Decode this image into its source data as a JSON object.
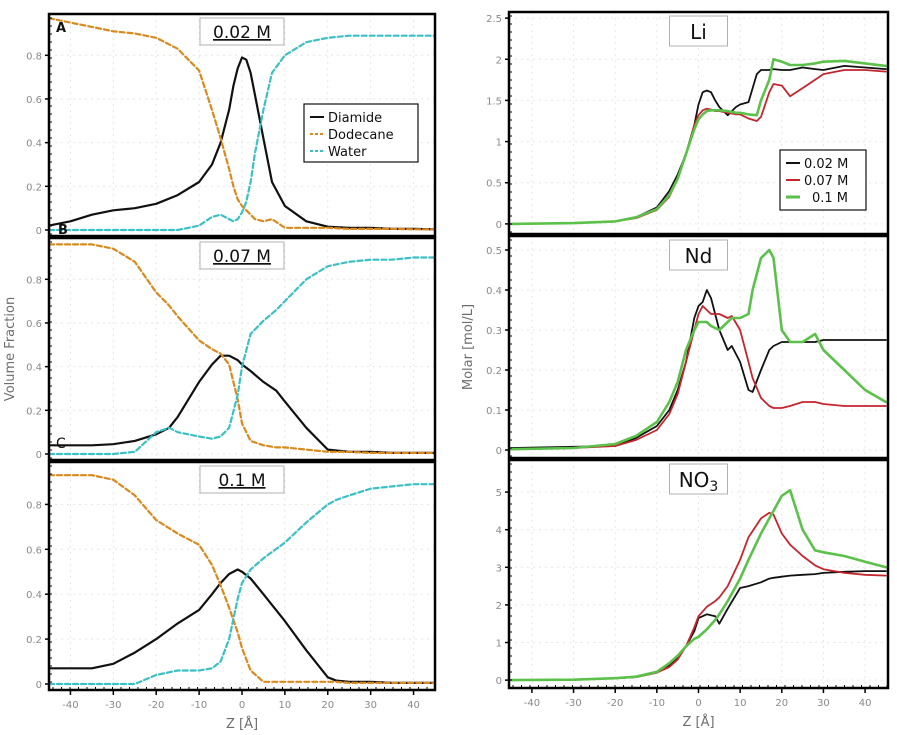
{
  "chart_data": [
    {
      "type": "line",
      "panel_group": "left",
      "ylabel": "Volume Fraction",
      "xlabel": "Z [Å]",
      "xlim": [
        -45,
        45
      ],
      "xticks": [
        -40,
        -30,
        -20,
        -10,
        0,
        10,
        20,
        30,
        40
      ],
      "grid": true,
      "legend": {
        "placement": "center-right",
        "panel": 0
      },
      "series_styles": [
        {
          "name": "Diamide",
          "color": "#111111",
          "dash": "solid"
        },
        {
          "name": "Dodecane",
          "color": "#d98a1e",
          "dash": "dashed"
        },
        {
          "name": "Water",
          "color": "#3cc0c4",
          "dash": "dashed"
        }
      ],
      "panels": [
        {
          "title": "0.02 M",
          "corner_label": "A",
          "bottom_label": "B",
          "ylim": [
            0,
            0.98
          ],
          "yticks": [
            0,
            0.2,
            0.4,
            0.6,
            0.8
          ],
          "x": [
            -45,
            -40,
            -35,
            -30,
            -25,
            -20,
            -15,
            -10,
            -7,
            -5,
            -3,
            -2,
            -1,
            0,
            1,
            2,
            3,
            5,
            7,
            10,
            15,
            20,
            25,
            30,
            35,
            40,
            45
          ],
          "series": [
            {
              "name": "Diamide",
              "values": [
                0.02,
                0.04,
                0.07,
                0.09,
                0.1,
                0.12,
                0.16,
                0.22,
                0.3,
                0.4,
                0.55,
                0.66,
                0.74,
                0.79,
                0.78,
                0.72,
                0.62,
                0.42,
                0.22,
                0.11,
                0.04,
                0.015,
                0.01,
                0.01,
                0.005,
                0.005,
                0.003
              ]
            },
            {
              "name": "Dodecane",
              "values": [
                0.97,
                0.95,
                0.93,
                0.91,
                0.9,
                0.88,
                0.83,
                0.73,
                0.55,
                0.42,
                0.28,
                0.2,
                0.14,
                0.11,
                0.09,
                0.07,
                0.05,
                0.04,
                0.05,
                0.01,
                0.01,
                0.01,
                0.005,
                0.005,
                0.005,
                0.003,
                0.003
              ]
            },
            {
              "name": "Water",
              "values": [
                0,
                0,
                0,
                0,
                0,
                0,
                0,
                0.02,
                0.06,
                0.07,
                0.05,
                0.04,
                0.05,
                0.08,
                0.13,
                0.22,
                0.35,
                0.55,
                0.72,
                0.8,
                0.86,
                0.88,
                0.89,
                0.89,
                0.89,
                0.89,
                0.89
              ]
            }
          ]
        },
        {
          "title": "0.07 M",
          "corner_label": "C",
          "ylim": [
            0,
            0.98
          ],
          "yticks": [
            0,
            0.2,
            0.4,
            0.6,
            0.8
          ],
          "x": [
            -45,
            -40,
            -35,
            -30,
            -25,
            -20,
            -17,
            -15,
            -10,
            -7,
            -5,
            -3,
            -1,
            0,
            2,
            5,
            8,
            10,
            15,
            20,
            25,
            30,
            35,
            40,
            45
          ],
          "series": [
            {
              "name": "Diamide",
              "values": [
                0.04,
                0.04,
                0.04,
                0.045,
                0.06,
                0.09,
                0.12,
                0.17,
                0.33,
                0.41,
                0.45,
                0.45,
                0.43,
                0.41,
                0.38,
                0.33,
                0.29,
                0.24,
                0.12,
                0.02,
                0.01,
                0.01,
                0.005,
                0.005,
                0.005
              ]
            },
            {
              "name": "Dodecane",
              "values": [
                0.96,
                0.96,
                0.96,
                0.94,
                0.88,
                0.74,
                0.68,
                0.63,
                0.52,
                0.48,
                0.46,
                0.41,
                0.25,
                0.14,
                0.06,
                0.04,
                0.03,
                0.03,
                0.02,
                0.01,
                0.01,
                0.005,
                0.005,
                0.005,
                0.005
              ]
            },
            {
              "name": "Water",
              "values": [
                0,
                0,
                0,
                0,
                0.01,
                0.1,
                0.12,
                0.1,
                0.08,
                0.07,
                0.08,
                0.12,
                0.27,
                0.4,
                0.55,
                0.61,
                0.66,
                0.7,
                0.8,
                0.86,
                0.88,
                0.89,
                0.89,
                0.9,
                0.9
              ]
            }
          ]
        },
        {
          "title": "0.1 M",
          "ylim": [
            0,
            0.98
          ],
          "yticks": [
            0,
            0.2,
            0.4,
            0.6,
            0.8
          ],
          "x": [
            -45,
            -40,
            -35,
            -30,
            -25,
            -20,
            -15,
            -10,
            -7,
            -5,
            -3,
            -1,
            0,
            2,
            5,
            10,
            15,
            20,
            22,
            25,
            30,
            35,
            40,
            45
          ],
          "series": [
            {
              "name": "Diamide",
              "values": [
                0.07,
                0.07,
                0.07,
                0.09,
                0.14,
                0.2,
                0.27,
                0.33,
                0.4,
                0.45,
                0.49,
                0.51,
                0.5,
                0.47,
                0.4,
                0.28,
                0.15,
                0.03,
                0.015,
                0.01,
                0.01,
                0.005,
                0.005,
                0.005
              ]
            },
            {
              "name": "Dodecane",
              "values": [
                0.93,
                0.93,
                0.93,
                0.91,
                0.84,
                0.73,
                0.67,
                0.62,
                0.53,
                0.44,
                0.34,
                0.23,
                0.16,
                0.06,
                0.01,
                0.01,
                0.01,
                0.01,
                0.01,
                0.005,
                0.005,
                0.005,
                0.005,
                0.005
              ]
            },
            {
              "name": "Water",
              "values": [
                0,
                0,
                0,
                0,
                0,
                0.04,
                0.06,
                0.06,
                0.07,
                0.1,
                0.2,
                0.38,
                0.45,
                0.51,
                0.56,
                0.63,
                0.72,
                0.8,
                0.82,
                0.84,
                0.87,
                0.88,
                0.89,
                0.89
              ]
            }
          ]
        }
      ]
    },
    {
      "type": "line",
      "panel_group": "right",
      "ylabel": "Molar [mol/L]",
      "xlabel": "Z [Å]",
      "xlim": [
        -45.5,
        45.5
      ],
      "xticks": [
        -40,
        -30,
        -20,
        -10,
        0,
        10,
        20,
        30,
        40
      ],
      "grid": true,
      "legend": {
        "placement": "lower-right",
        "panel": 0
      },
      "series_styles": [
        {
          "name": "0.02 M",
          "color": "#111111"
        },
        {
          "name": "0.07 M",
          "color": "#c4262e"
        },
        {
          "name": "0.1 M",
          "color": "#5cc14a"
        }
      ],
      "panels": [
        {
          "title": "Li",
          "title_sub": "",
          "ylim": [
            -0.05,
            2.55
          ],
          "yticks": [
            0,
            0.5,
            1,
            1.5,
            2,
            2.5
          ],
          "ytick_labels": [
            "0",
            "0.5",
            "1",
            "1.5",
            "2",
            "2.5"
          ],
          "x": [
            -45,
            -30,
            -20,
            -15,
            -10,
            -7,
            -5,
            -3,
            -1,
            0,
            1,
            2,
            3,
            4,
            5,
            7,
            9,
            10,
            12,
            14,
            15,
            17,
            18,
            20,
            22,
            25,
            28,
            30,
            35,
            40,
            45
          ],
          "series": [
            {
              "name": "0.02 M",
              "values": [
                0,
                0.01,
                0.03,
                0.08,
                0.2,
                0.4,
                0.6,
                0.85,
                1.2,
                1.45,
                1.6,
                1.62,
                1.6,
                1.5,
                1.42,
                1.32,
                1.42,
                1.45,
                1.48,
                1.82,
                1.87,
                1.87,
                1.88,
                1.87,
                1.87,
                1.9,
                1.88,
                1.87,
                1.92,
                1.9,
                1.88
              ]
            },
            {
              "name": "0.07 M",
              "values": [
                0,
                0.01,
                0.03,
                0.07,
                0.17,
                0.33,
                0.55,
                0.85,
                1.2,
                1.32,
                1.38,
                1.4,
                1.39,
                1.37,
                1.37,
                1.35,
                1.33,
                1.33,
                1.28,
                1.25,
                1.3,
                1.6,
                1.7,
                1.68,
                1.55,
                1.65,
                1.75,
                1.82,
                1.87,
                1.87,
                1.85
              ]
            },
            {
              "name": "0.1 M",
              "values": [
                0,
                0.01,
                0.03,
                0.08,
                0.18,
                0.35,
                0.55,
                0.85,
                1.15,
                1.27,
                1.33,
                1.37,
                1.38,
                1.38,
                1.38,
                1.37,
                1.35,
                1.35,
                1.33,
                1.32,
                1.5,
                1.75,
                2.0,
                1.97,
                1.93,
                1.93,
                1.95,
                1.97,
                1.98,
                1.95,
                1.92
              ]
            }
          ]
        },
        {
          "title": "Nd",
          "title_sub": "",
          "ylim": [
            -0.005,
            0.53
          ],
          "yticks": [
            0,
            0.1,
            0.2,
            0.3,
            0.4,
            0.5
          ],
          "ytick_labels": [
            "0",
            "0.1",
            "0.2",
            "0.3",
            "0.4",
            "0.5"
          ],
          "x": [
            -45,
            -30,
            -20,
            -15,
            -10,
            -7,
            -5,
            -3,
            -1,
            0,
            1,
            2,
            3,
            5,
            7,
            8,
            10,
            12,
            13,
            15,
            17,
            18,
            20,
            22,
            25,
            28,
            30,
            35,
            40,
            45
          ],
          "series": [
            {
              "name": "0.02 M",
              "values": [
                0.005,
                0.008,
                0.01,
                0.03,
                0.06,
                0.1,
                0.15,
                0.22,
                0.33,
                0.36,
                0.37,
                0.4,
                0.38,
                0.3,
                0.25,
                0.26,
                0.22,
                0.15,
                0.145,
                0.2,
                0.25,
                0.26,
                0.27,
                0.27,
                0.27,
                0.27,
                0.275,
                0.275,
                0.275,
                0.275
              ]
            },
            {
              "name": "0.07 M",
              "values": [
                0.002,
                0.005,
                0.01,
                0.025,
                0.05,
                0.09,
                0.14,
                0.22,
                0.3,
                0.34,
                0.36,
                0.35,
                0.34,
                0.34,
                0.33,
                0.335,
                0.3,
                0.22,
                0.18,
                0.13,
                0.11,
                0.105,
                0.105,
                0.11,
                0.12,
                0.12,
                0.115,
                0.11,
                0.11,
                0.11
              ]
            },
            {
              "name": "0.1 M",
              "values": [
                0.002,
                0.005,
                0.015,
                0.035,
                0.07,
                0.12,
                0.17,
                0.25,
                0.3,
                0.32,
                0.32,
                0.32,
                0.31,
                0.3,
                0.32,
                0.33,
                0.33,
                0.34,
                0.4,
                0.48,
                0.5,
                0.48,
                0.3,
                0.27,
                0.27,
                0.29,
                0.25,
                0.2,
                0.15,
                0.12
              ]
            }
          ]
        },
        {
          "title": "NO",
          "title_sub": "3",
          "ylim": [
            -0.05,
            5.8
          ],
          "yticks": [
            0,
            1,
            2,
            3,
            4,
            5
          ],
          "ytick_labels": [
            "0",
            "1",
            "2",
            "3",
            "4",
            "5"
          ],
          "x": [
            -45,
            -30,
            -20,
            -15,
            -10,
            -7,
            -5,
            -3,
            -1,
            0,
            2,
            4,
            5,
            7,
            10,
            12,
            15,
            17,
            18,
            20,
            22,
            25,
            28,
            30,
            35,
            40,
            45
          ],
          "series": [
            {
              "name": "0.02 M",
              "values": [
                0,
                0.01,
                0.05,
                0.08,
                0.2,
                0.4,
                0.6,
                0.9,
                1.3,
                1.65,
                1.75,
                1.7,
                1.5,
                1.9,
                2.45,
                2.5,
                2.6,
                2.7,
                2.72,
                2.75,
                2.78,
                2.8,
                2.82,
                2.85,
                2.88,
                2.9,
                2.9
              ]
            },
            {
              "name": "0.07 M",
              "values": [
                0,
                0.01,
                0.05,
                0.08,
                0.2,
                0.35,
                0.55,
                0.9,
                1.4,
                1.7,
                1.95,
                2.1,
                2.2,
                2.5,
                3.2,
                3.8,
                4.3,
                4.45,
                4.4,
                3.9,
                3.6,
                3.3,
                3.05,
                2.95,
                2.85,
                2.8,
                2.78
              ]
            },
            {
              "name": "0.1 M",
              "values": [
                0,
                0.01,
                0.05,
                0.09,
                0.22,
                0.45,
                0.65,
                0.9,
                1.1,
                1.15,
                1.35,
                1.6,
                1.75,
                2.1,
                2.7,
                3.2,
                3.9,
                4.3,
                4.5,
                4.9,
                5.05,
                4.0,
                3.45,
                3.4,
                3.3,
                3.15,
                3.0
              ]
            }
          ]
        }
      ]
    }
  ]
}
